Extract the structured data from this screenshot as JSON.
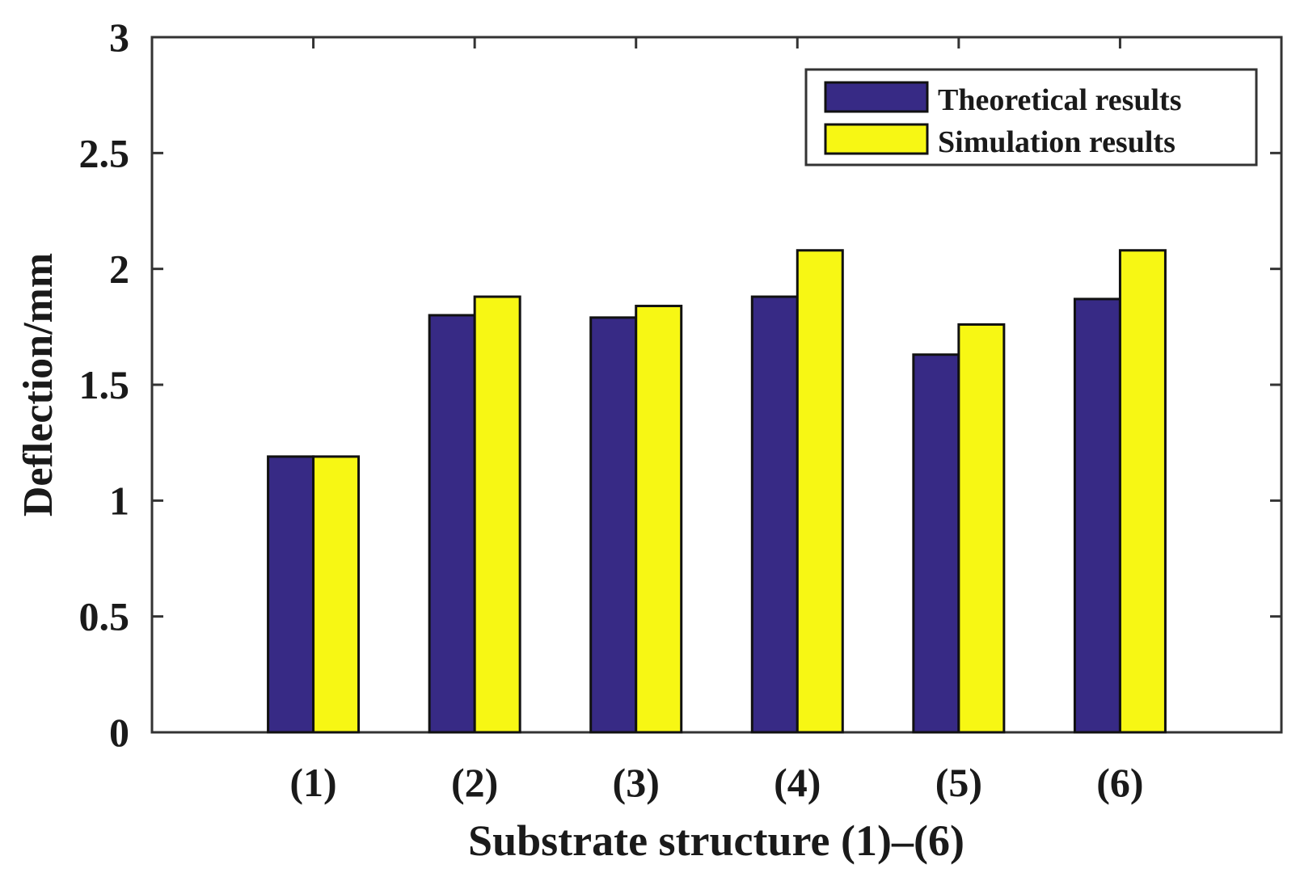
{
  "chart_data": {
    "type": "bar",
    "title": "",
    "xlabel": "Substrate structure (1)–(6)",
    "ylabel": "Deflection/mm",
    "categories": [
      "(1)",
      "(2)",
      "(3)",
      "(4)",
      "(5)",
      "(6)"
    ],
    "series": [
      {
        "name": "Theoretical results",
        "color": "#372a85",
        "values": [
          1.19,
          1.8,
          1.79,
          1.88,
          1.63,
          1.87
        ]
      },
      {
        "name": "Simulation results",
        "color": "#f7f714",
        "values": [
          1.19,
          1.88,
          1.84,
          2.08,
          1.76,
          2.08
        ]
      }
    ],
    "ylim": [
      0,
      3
    ],
    "yticks": [
      "0",
      "0.5",
      "1",
      "1.5",
      "2",
      "2.5",
      "3"
    ],
    "grid": false,
    "legend_position": "top-right"
  }
}
